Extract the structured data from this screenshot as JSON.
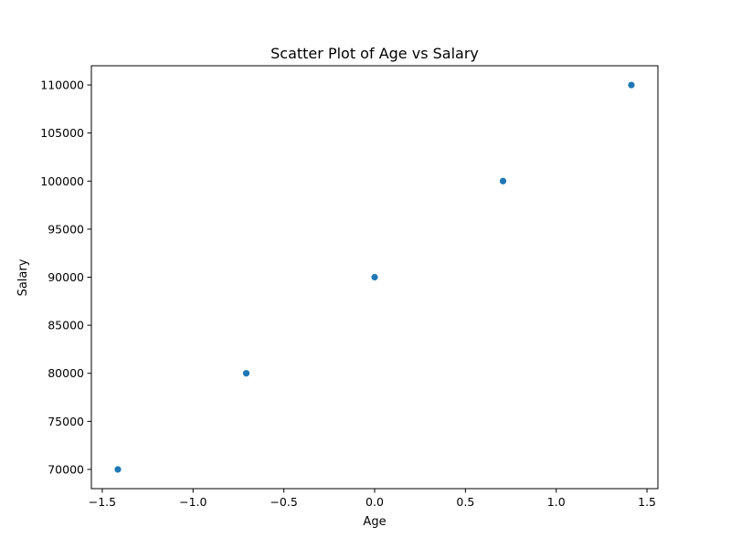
{
  "chart_data": {
    "type": "scatter",
    "title": "Scatter Plot of Age vs Salary",
    "xlabel": "Age",
    "ylabel": "Salary",
    "xlim": [
      -1.56,
      1.56
    ],
    "ylim": [
      68000,
      112000
    ],
    "x_ticks": [
      -1.5,
      -1.0,
      -0.5,
      0.0,
      0.5,
      1.0,
      1.5
    ],
    "x_tick_labels": [
      "−1.5",
      "−1.0",
      "−0.5",
      "0.0",
      "0.5",
      "1.0",
      "1.5"
    ],
    "y_ticks": [
      70000,
      75000,
      80000,
      85000,
      90000,
      95000,
      100000,
      105000,
      110000
    ],
    "y_tick_labels": [
      "70000",
      "75000",
      "80000",
      "85000",
      "90000",
      "95000",
      "100000",
      "105000",
      "110000"
    ],
    "grid": false,
    "legend": "none",
    "color": "#1f77b4",
    "points": [
      {
        "x": -1.414,
        "y": 70000
      },
      {
        "x": -0.707,
        "y": 80000
      },
      {
        "x": 0.0,
        "y": 90000
      },
      {
        "x": 0.707,
        "y": 100000
      },
      {
        "x": 1.414,
        "y": 110000
      }
    ]
  }
}
